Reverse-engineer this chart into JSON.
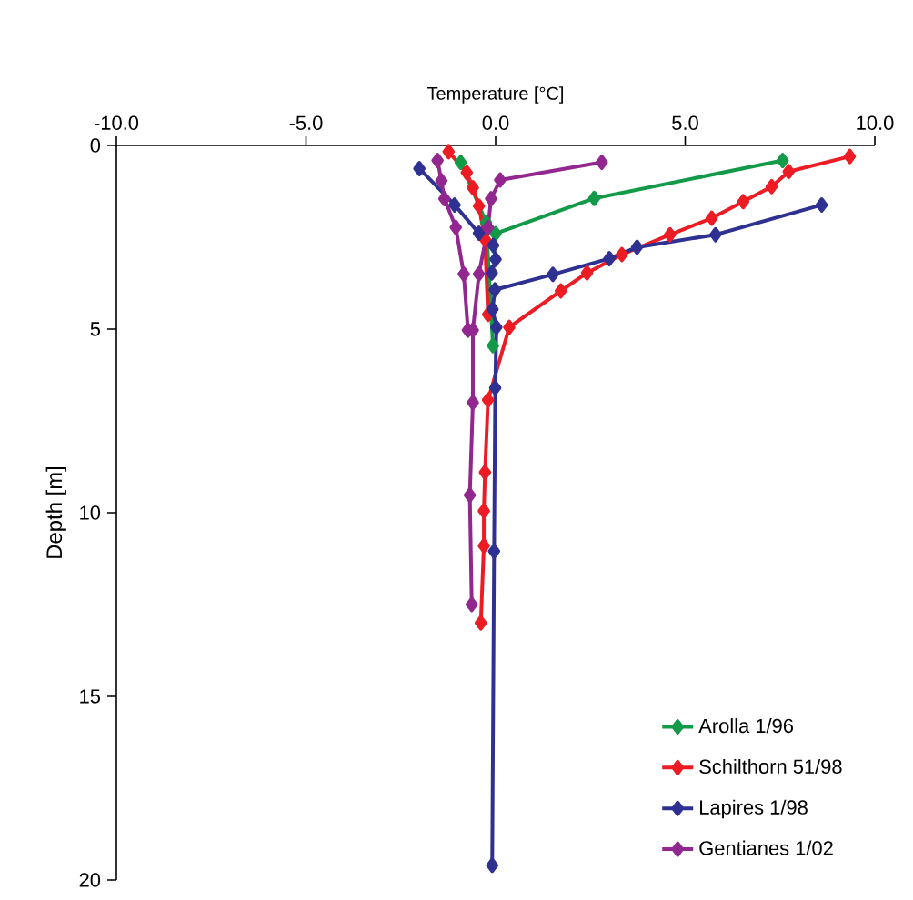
{
  "chart_data": {
    "type": "line",
    "xlabel": "Temperature [°C]",
    "ylabel": "Depth [m]",
    "xlim": [
      -10,
      10
    ],
    "ylim": [
      20,
      0
    ],
    "xticks": [
      {
        "value": -10,
        "label": "-10.0"
      },
      {
        "value": -5,
        "label": "-5.0"
      },
      {
        "value": 0,
        "label": "0.0"
      },
      {
        "value": 5,
        "label": "5.0"
      },
      {
        "value": 10,
        "label": "10.0"
      }
    ],
    "yticks": [
      0,
      5,
      10,
      15,
      20
    ],
    "grid": false,
    "legend": "bottom right",
    "marker": "diamond",
    "line_style": "solid",
    "series": [
      {
        "name": "Arolla 1/96",
        "color": "#129a48",
        "x": [
          7.57,
          2.6,
          0.0,
          null,
          -0.92,
          -0.25,
          -0.07
        ],
        "values": [
          0.41,
          1.44,
          2.4,
          null,
          0.46,
          2.1,
          5.45
        ]
      },
      {
        "name": "Schilthorn 51/98",
        "color": "#ed1c24",
        "x": [
          9.34,
          7.73,
          7.28,
          6.53,
          5.7,
          4.6,
          3.33,
          2.41,
          1.72,
          0.36,
          -0.2,
          -0.28,
          -0.31,
          -0.31,
          -0.39,
          null,
          -1.24,
          -0.76,
          -0.6,
          -0.44,
          -0.28,
          -0.2
        ],
        "values": [
          0.3,
          0.71,
          1.12,
          1.53,
          1.98,
          2.43,
          2.97,
          3.47,
          3.96,
          4.95,
          6.93,
          8.9,
          9.95,
          10.9,
          13.0,
          null,
          0.17,
          0.74,
          1.15,
          1.65,
          2.56,
          4.6
        ]
      },
      {
        "name": "Lapires 1/98",
        "color": "#2e3192",
        "x": [
          8.6,
          5.8,
          3.73,
          3.0,
          1.51,
          -0.02,
          -0.08,
          0.02,
          -0.01,
          -0.04,
          -0.09,
          null,
          -2.01,
          -1.08,
          -0.44,
          -0.06,
          0.0,
          -0.1
        ],
        "values": [
          1.62,
          2.43,
          2.77,
          3.08,
          3.51,
          3.93,
          4.46,
          4.95,
          6.6,
          11.05,
          19.6,
          null,
          0.63,
          1.62,
          2.39,
          2.72,
          3.1,
          3.47
        ]
      },
      {
        "name": "Gentianes 1/02",
        "color": "#92278f",
        "x": [
          2.8,
          0.12,
          -0.12,
          -0.2,
          -0.44,
          -0.6,
          -0.6,
          -0.68,
          -0.63,
          null,
          -1.53,
          -1.43,
          -1.35,
          -1.05,
          -0.84,
          -0.73
        ],
        "values": [
          0.46,
          0.94,
          1.45,
          2.23,
          3.5,
          5.03,
          7.0,
          9.52,
          12.5,
          null,
          0.41,
          0.96,
          1.45,
          2.23,
          3.5,
          5.03
        ]
      }
    ]
  }
}
